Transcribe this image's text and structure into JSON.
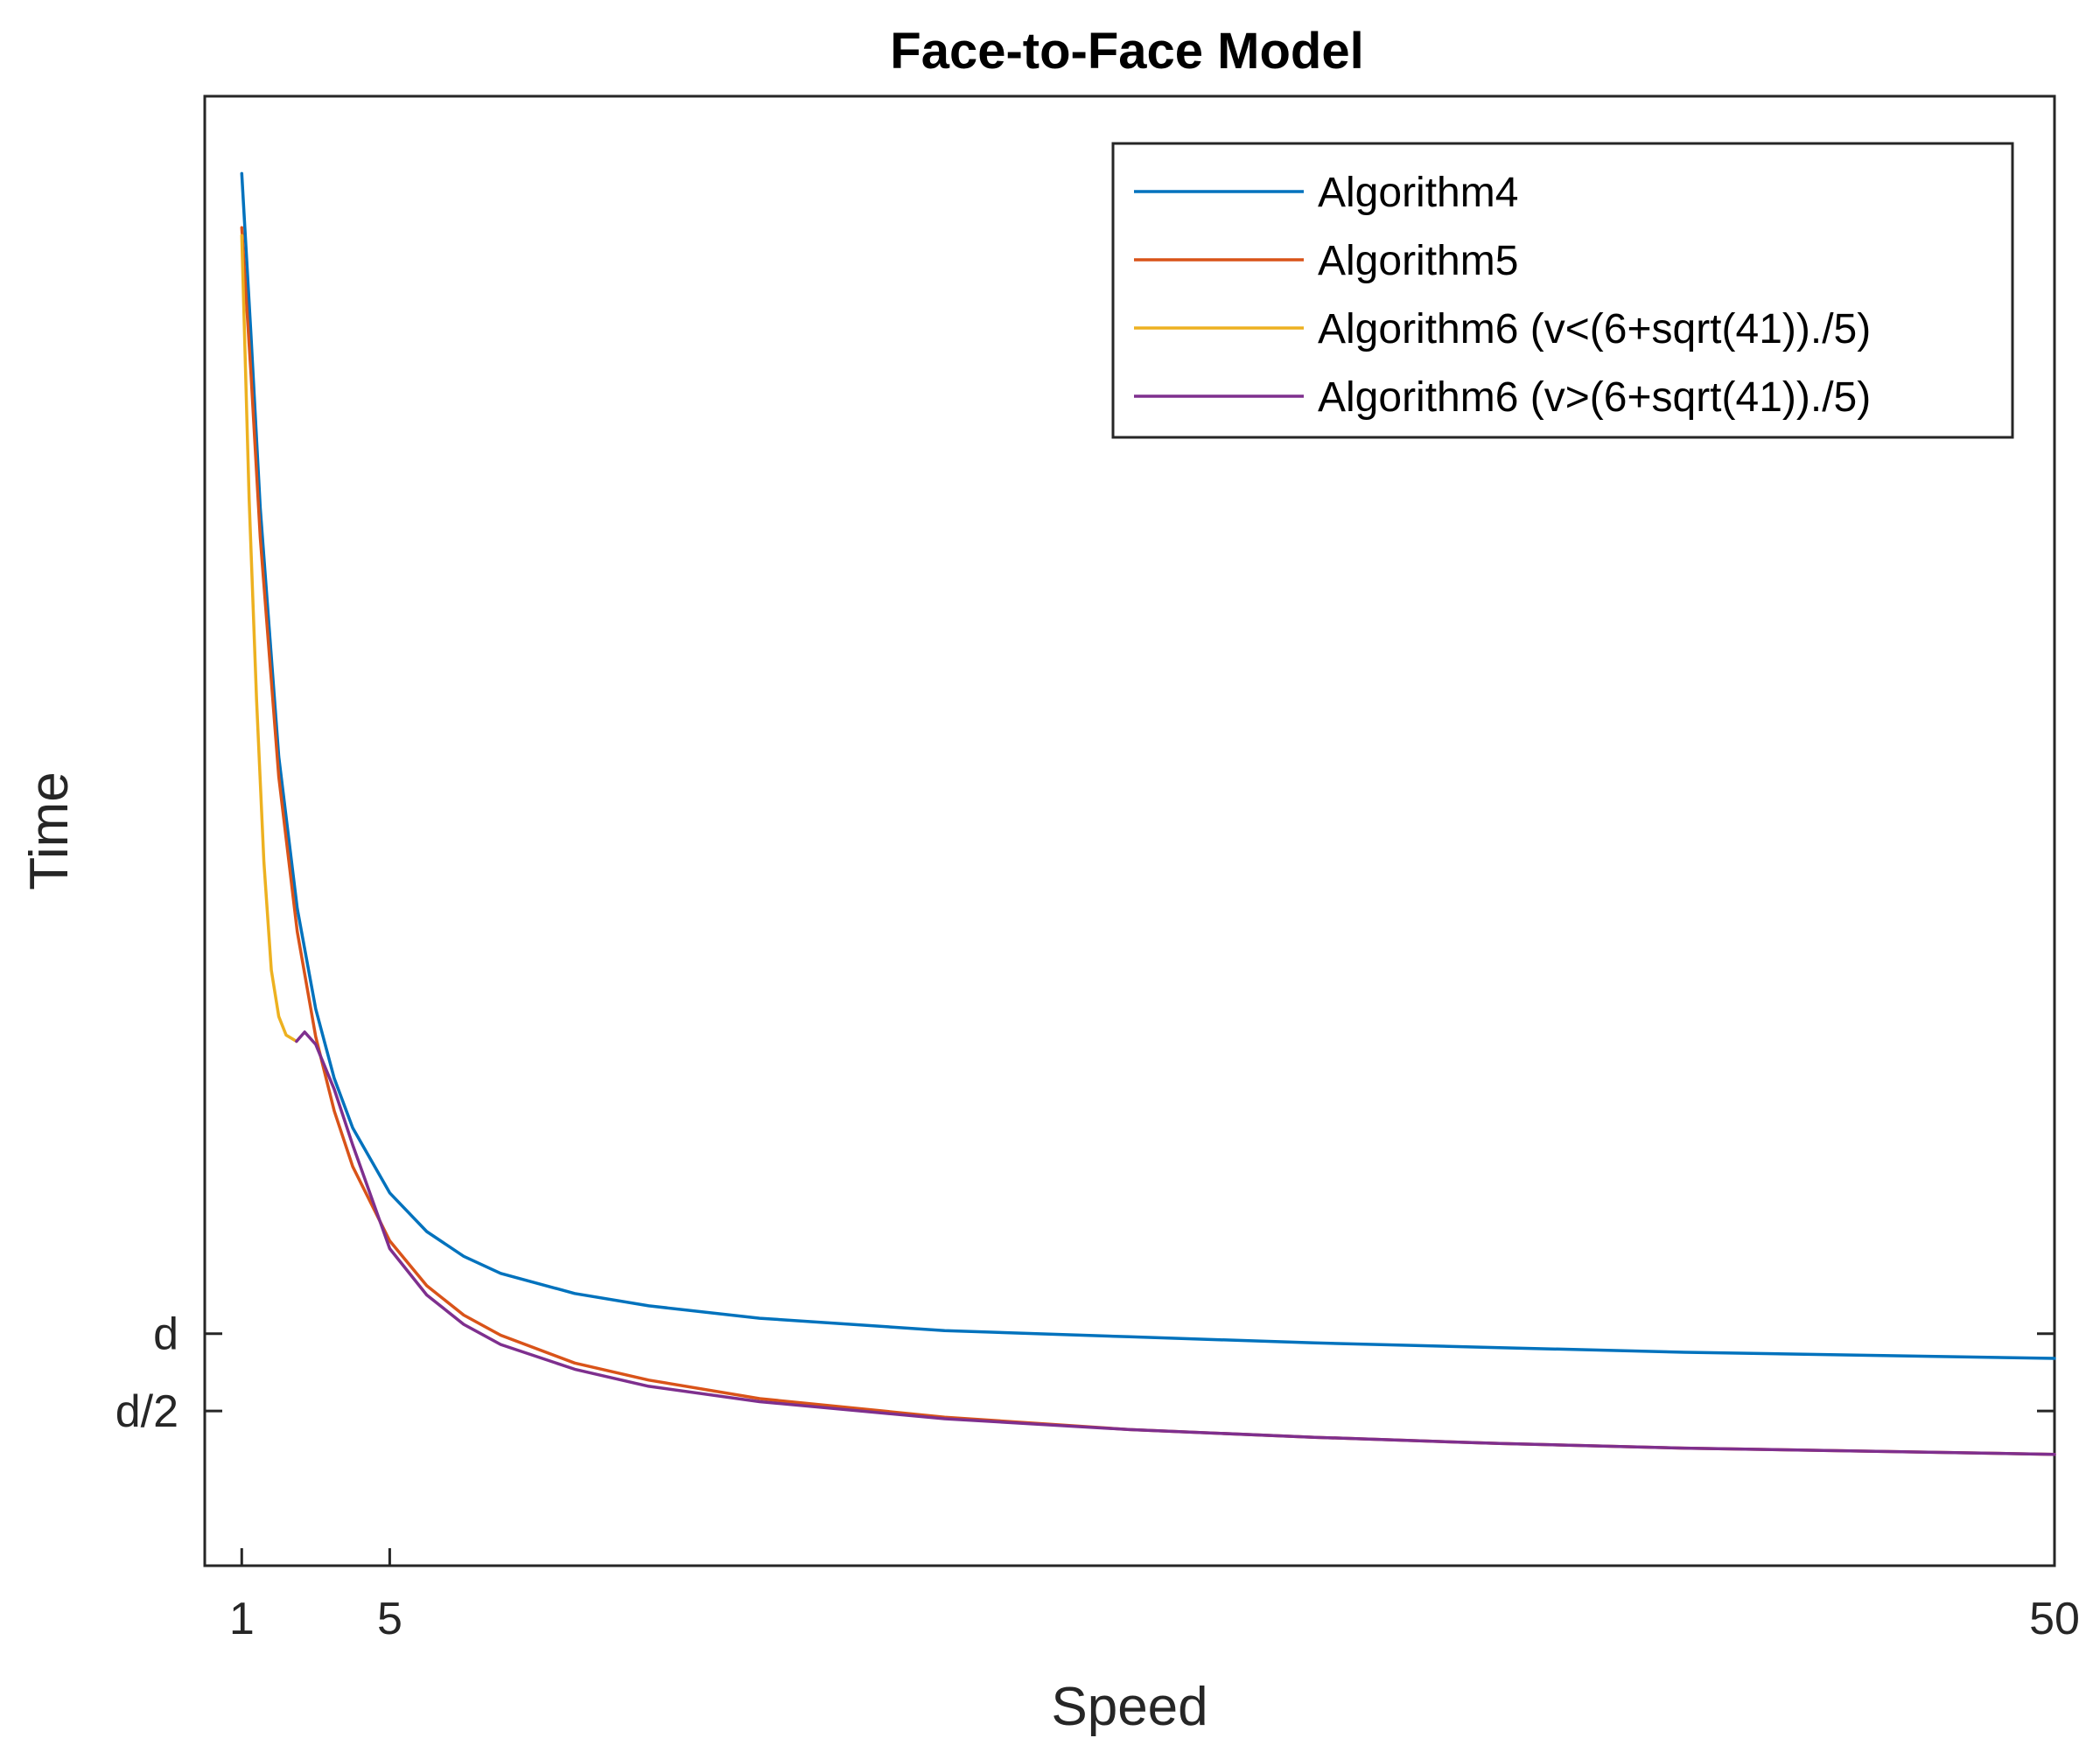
{
  "chart_data": {
    "type": "line",
    "title": "Face-to-Face Model",
    "xlabel": "Speed",
    "ylabel": "Time",
    "xlim": [
      0,
      50
    ],
    "ylim": [
      -0.5,
      9
    ],
    "x_ticks": [
      {
        "value": 1,
        "label": "1"
      },
      {
        "value": 5,
        "label": "5"
      },
      {
        "value": 50,
        "label": "50"
      }
    ],
    "y_ticks": [
      {
        "value": 1,
        "label": "d"
      },
      {
        "value": 0.5,
        "label": "d/2"
      }
    ],
    "grid": false,
    "legend_position": "top-right",
    "series": [
      {
        "name": "Algorithm4",
        "color": "#0072BD",
        "points": [
          [
            1,
            8.5
          ],
          [
            1.25,
            7.45
          ],
          [
            1.5,
            6.34
          ],
          [
            2,
            4.73
          ],
          [
            2.5,
            3.75
          ],
          [
            3,
            3.1
          ],
          [
            3.5,
            2.65
          ],
          [
            4,
            2.33
          ],
          [
            5,
            1.91
          ],
          [
            6,
            1.66
          ],
          [
            7,
            1.5
          ],
          [
            8,
            1.39
          ],
          [
            10,
            1.26
          ],
          [
            12,
            1.18
          ],
          [
            15,
            1.1
          ],
          [
            20,
            1.02
          ],
          [
            25,
            0.98
          ],
          [
            30,
            0.94
          ],
          [
            35,
            0.91
          ],
          [
            40,
            0.88
          ],
          [
            45,
            0.86
          ],
          [
            50,
            0.84
          ]
        ]
      },
      {
        "name": "Algorithm5",
        "color": "#D95319",
        "points": [
          [
            1,
            8.15
          ],
          [
            1.25,
            7.2
          ],
          [
            1.5,
            6.15
          ],
          [
            2,
            4.6
          ],
          [
            2.5,
            3.6
          ],
          [
            3,
            2.92
          ],
          [
            3.5,
            2.44
          ],
          [
            4,
            2.08
          ],
          [
            5,
            1.6
          ],
          [
            6,
            1.31
          ],
          [
            7,
            1.12
          ],
          [
            8,
            0.99
          ],
          [
            10,
            0.81
          ],
          [
            12,
            0.7
          ],
          [
            15,
            0.58
          ],
          [
            20,
            0.46
          ],
          [
            25,
            0.38
          ],
          [
            30,
            0.33
          ],
          [
            35,
            0.29
          ],
          [
            40,
            0.26
          ],
          [
            45,
            0.24
          ],
          [
            50,
            0.22
          ]
        ]
      },
      {
        "name": "Algorithm6 (v<(6+sqrt(41))./5)",
        "color": "#EDB120",
        "points": [
          [
            1,
            8.1
          ],
          [
            1.2,
            6.4
          ],
          [
            1.4,
            5.1
          ],
          [
            1.6,
            4.05
          ],
          [
            1.8,
            3.35
          ],
          [
            2,
            3.05
          ],
          [
            2.2,
            2.93
          ],
          [
            2.48,
            2.89
          ]
        ]
      },
      {
        "name": "Algorithm6 (v>(6+sqrt(41))./5)",
        "color": "#7E2F8E",
        "points": [
          [
            2.48,
            2.89
          ],
          [
            2.7,
            2.95
          ],
          [
            3,
            2.87
          ],
          [
            3.5,
            2.58
          ],
          [
            4,
            2.22
          ],
          [
            5,
            1.55
          ],
          [
            6,
            1.25
          ],
          [
            7,
            1.06
          ],
          [
            8,
            0.93
          ],
          [
            10,
            0.77
          ],
          [
            12,
            0.66
          ],
          [
            15,
            0.56
          ],
          [
            20,
            0.45
          ],
          [
            25,
            0.38
          ],
          [
            30,
            0.33
          ],
          [
            35,
            0.29
          ],
          [
            40,
            0.26
          ],
          [
            45,
            0.24
          ],
          [
            50,
            0.22
          ]
        ]
      }
    ]
  }
}
